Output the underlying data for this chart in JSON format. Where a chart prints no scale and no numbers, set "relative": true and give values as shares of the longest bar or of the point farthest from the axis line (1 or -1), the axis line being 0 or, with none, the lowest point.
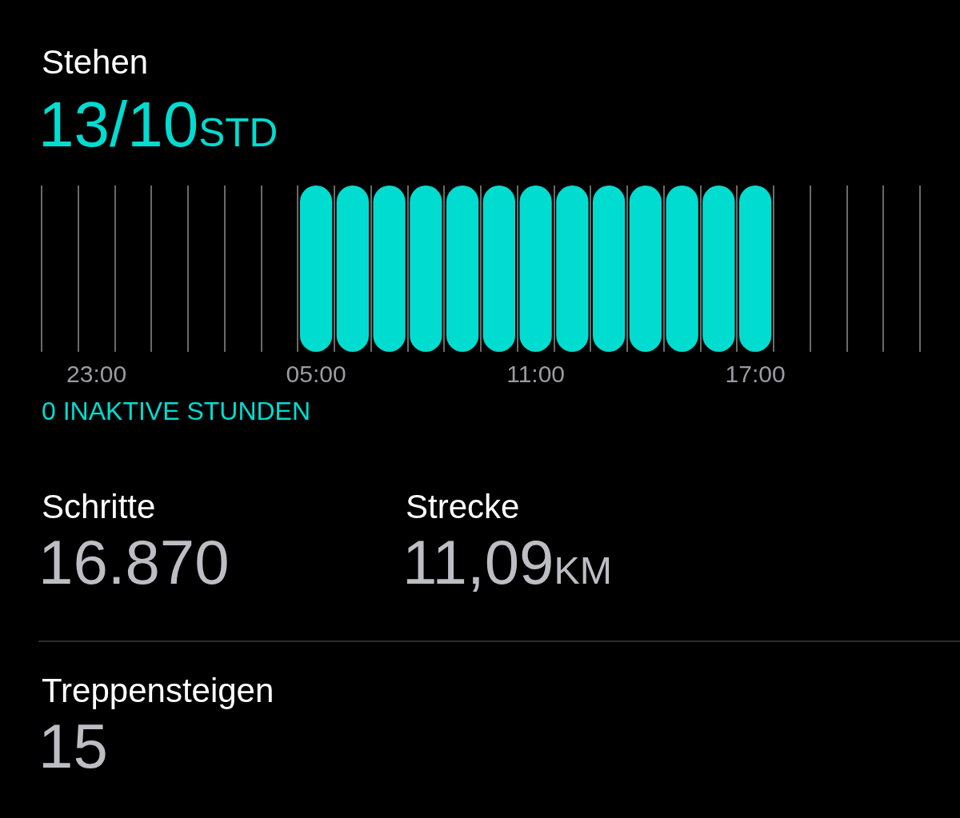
{
  "chart_data": [
    {
      "type": "bar",
      "title": "Stehen",
      "subtitle": "13/10STD",
      "relative": true,
      "color": "#00dcd0",
      "grid": "x",
      "tick_labels": "x",
      "categories": [
        null,
        "23:00",
        null,
        null,
        null,
        null,
        null,
        "05:00",
        null,
        null,
        null,
        null,
        null,
        "11:00",
        null,
        null,
        null,
        null,
        null,
        "17:00",
        null,
        null,
        null,
        null
      ],
      "values": [
        0,
        0,
        0,
        0,
        0,
        0,
        0,
        1,
        1,
        1,
        1,
        1,
        1,
        1,
        1,
        1,
        1,
        1,
        1,
        1,
        0,
        0,
        0,
        0
      ],
      "annotations": [
        "0 INAKTIVE STUNDEN"
      ]
    },
    {
      "type": "other",
      "annotations": [
        "Schritte",
        "16.870",
        "Strecke",
        "11,09KM",
        "Treppensteigen",
        "15"
      ]
    }
  ]
}
